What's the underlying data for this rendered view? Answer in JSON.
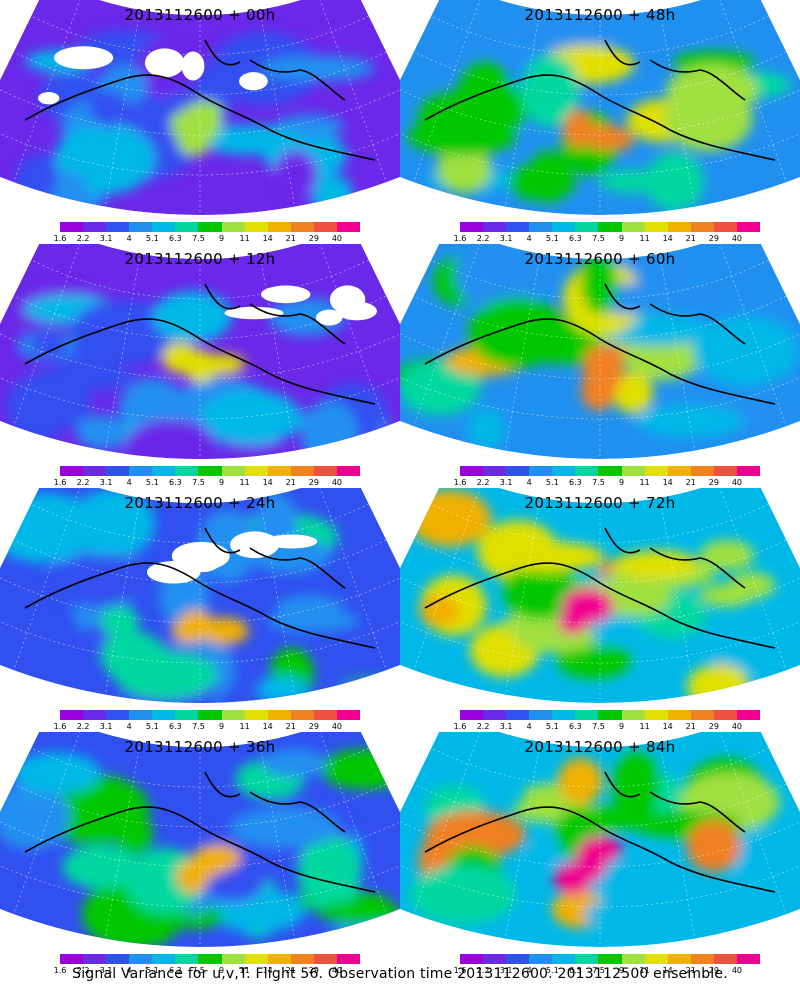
{
  "panels": [
    {
      "title": "2013112600 + 00h",
      "intensity": 0.15
    },
    {
      "title": "2013112600 + 48h",
      "intensity": 0.55
    },
    {
      "title": "2013112600 + 12h",
      "intensity": 0.25
    },
    {
      "title": "2013112600 + 60h",
      "intensity": 0.65
    },
    {
      "title": "2013112600 + 24h",
      "intensity": 0.35
    },
    {
      "title": "2013112600 + 72h",
      "intensity": 0.75
    },
    {
      "title": "2013112600 + 36h",
      "intensity": 0.45
    },
    {
      "title": "2013112600 + 84h",
      "intensity": 0.85
    }
  ],
  "colorbar": {
    "colors": [
      "#9a00e0",
      "#6a28e8",
      "#3050f0",
      "#2090f0",
      "#00b8e8",
      "#00d8a0",
      "#00c800",
      "#a0e040",
      "#e0e000",
      "#f0b000",
      "#f08020",
      "#f05040",
      "#f00090"
    ],
    "ticks": [
      "1.6",
      "2.2",
      "3.1",
      "4",
      "5.1",
      "6.3",
      "7.5",
      "9",
      "11",
      "14",
      "21",
      "29",
      "40"
    ]
  },
  "footer": "Signal Variance for u,v,T. Flight 56. Observation time 2013112600. 2013112500 ensemble."
}
